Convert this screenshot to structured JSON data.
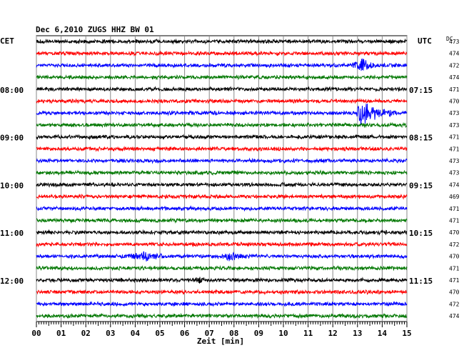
{
  "chart_data": {
    "type": "line",
    "title": "Dec 6,2010   ZUGS HHZ BW 01",
    "left_header": "CET",
    "right_header": "UTC",
    "dc_header": "DC",
    "xlabel": "Zeit [min]",
    "xlim": [
      0,
      15
    ],
    "x_ticks": [
      "00",
      "01",
      "02",
      "03",
      "04",
      "05",
      "06",
      "07",
      "08",
      "09",
      "10",
      "11",
      "12",
      "13",
      "14",
      "15"
    ],
    "grid": true,
    "trace_colors": [
      "#000000",
      "#ff0000",
      "#0000ff",
      "#007700"
    ],
    "traces": [
      {
        "dc": "473",
        "amp": 3,
        "events": []
      },
      {
        "dc": "474",
        "amp": 3,
        "events": []
      },
      {
        "dc": "472",
        "amp": 3,
        "events": [
          {
            "start": 12.7,
            "end": 13.8,
            "peak": 13.2,
            "amp": 12
          }
        ]
      },
      {
        "dc": "474",
        "amp": 3,
        "events": []
      },
      {
        "dc": "471",
        "amp": 3,
        "events": []
      },
      {
        "dc": "470",
        "amp": 3,
        "events": []
      },
      {
        "dc": "473",
        "amp": 3,
        "events": [
          {
            "start": 12.9,
            "end": 14.8,
            "peak": 13.1,
            "amp": 17
          }
        ]
      },
      {
        "dc": "473",
        "amp": 3,
        "events": []
      },
      {
        "dc": "471",
        "amp": 3,
        "events": []
      },
      {
        "dc": "471",
        "amp": 3,
        "events": []
      },
      {
        "dc": "473",
        "amp": 3,
        "events": []
      },
      {
        "dc": "473",
        "amp": 3,
        "events": []
      },
      {
        "dc": "474",
        "amp": 3,
        "events": []
      },
      {
        "dc": "469",
        "amp": 3,
        "events": []
      },
      {
        "dc": "471",
        "amp": 3,
        "events": []
      },
      {
        "dc": "471",
        "amp": 3,
        "events": []
      },
      {
        "dc": "470",
        "amp": 3,
        "events": []
      },
      {
        "dc": "472",
        "amp": 3,
        "events": []
      },
      {
        "dc": "470",
        "amp": 3,
        "events": [
          {
            "start": 3.4,
            "end": 5.4,
            "peak": 4.5,
            "amp": 6
          },
          {
            "start": 7.4,
            "end": 8.6,
            "peak": 7.9,
            "amp": 7
          }
        ]
      },
      {
        "dc": "471",
        "amp": 3,
        "events": []
      },
      {
        "dc": "471",
        "amp": 3,
        "events": [
          {
            "start": 6.4,
            "end": 6.9,
            "peak": 6.6,
            "amp": 5
          }
        ]
      },
      {
        "dc": "470",
        "amp": 3,
        "events": []
      },
      {
        "dc": "472",
        "amp": 3,
        "events": []
      },
      {
        "dc": "474",
        "amp": 3,
        "events": []
      }
    ],
    "left_labels": [
      {
        "row": 4,
        "text": "08:00"
      },
      {
        "row": 8,
        "text": "09:00"
      },
      {
        "row": 12,
        "text": "10:00"
      },
      {
        "row": 16,
        "text": "11:00"
      },
      {
        "row": 20,
        "text": "12:00"
      }
    ],
    "right_labels": [
      {
        "row": 4,
        "text": "07:15"
      },
      {
        "row": 8,
        "text": "08:15"
      },
      {
        "row": 12,
        "text": "09:15"
      },
      {
        "row": 16,
        "text": "10:15"
      },
      {
        "row": 20,
        "text": "11:15"
      }
    ]
  }
}
